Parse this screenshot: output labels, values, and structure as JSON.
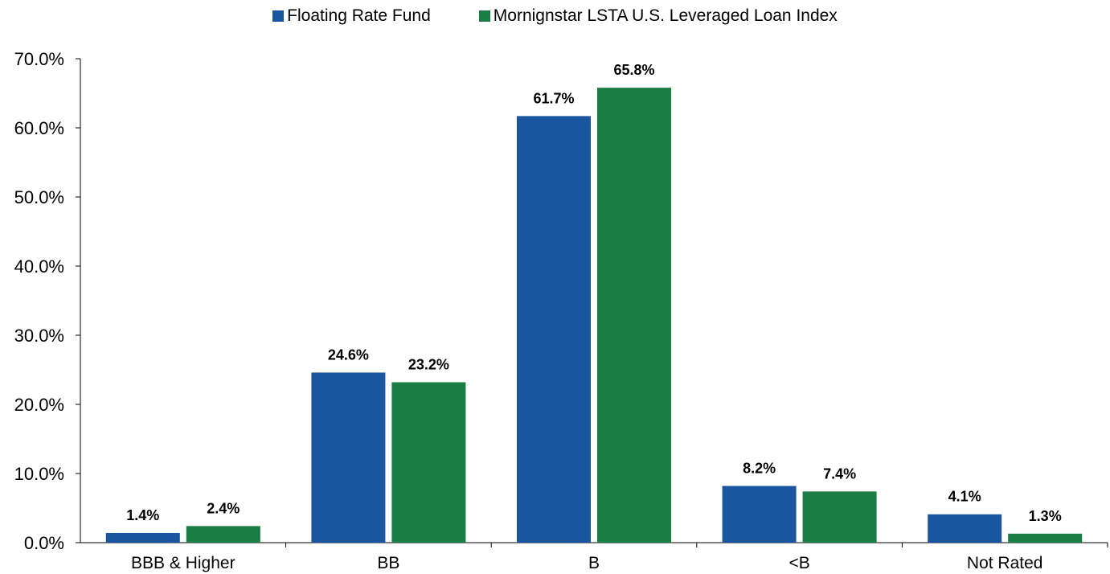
{
  "chart_data": {
    "type": "bar",
    "categories": [
      "BBB & Higher",
      "BB",
      "B",
      "<B",
      "Not Rated"
    ],
    "series": [
      {
        "name": "Floating Rate Fund",
        "color": "#1a56a0",
        "values": [
          1.4,
          24.6,
          61.7,
          8.2,
          4.1
        ],
        "labels": [
          "1.4%",
          "24.6%",
          "61.7%",
          "8.2%",
          "4.1%"
        ]
      },
      {
        "name": "Mornignstar LSTA U.S. Leveraged Loan Index",
        "color": "#1a7d43",
        "values": [
          2.4,
          23.2,
          65.8,
          7.4,
          1.3
        ],
        "labels": [
          "2.4%",
          "23.2%",
          "65.8%",
          "7.4%",
          "1.3%"
        ]
      }
    ],
    "ylim": [
      0,
      70
    ],
    "yticks": [
      0,
      10,
      20,
      30,
      40,
      50,
      60,
      70
    ],
    "ytick_labels": [
      "0.0%",
      "10.0%",
      "20.0%",
      "30.0%",
      "40.0%",
      "50.0%",
      "60.0%",
      "70.0%"
    ],
    "legend_position": "top-center",
    "grid": false
  }
}
